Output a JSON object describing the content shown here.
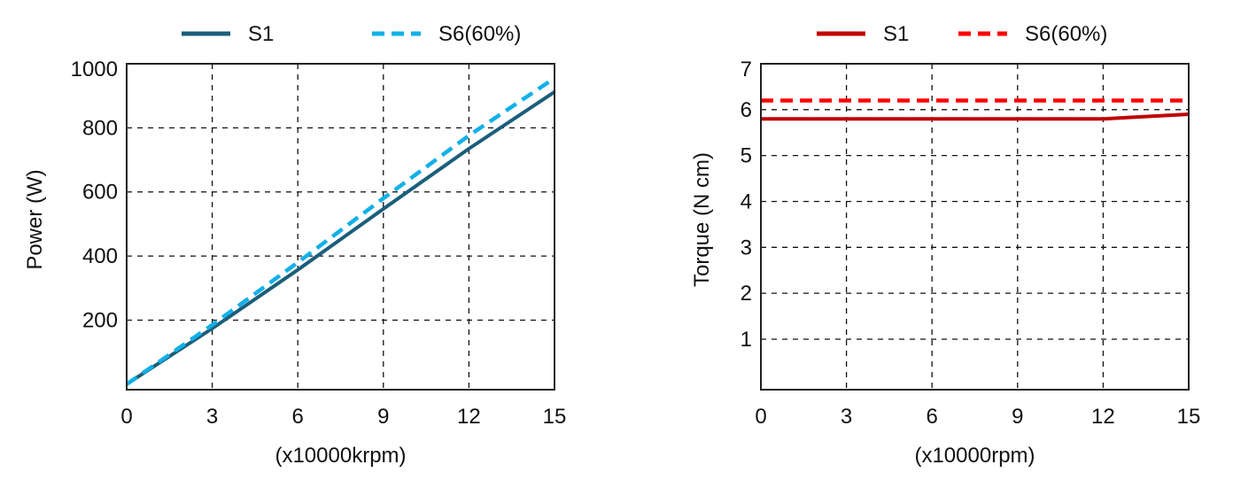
{
  "chart_data": [
    {
      "type": "line",
      "title": "",
      "xlabel": "(x10000krpm)",
      "ylabel": "Power (W)",
      "x": [
        0,
        3,
        6,
        9,
        12,
        15
      ],
      "xticks": [
        "0",
        "3",
        "6",
        "9",
        "12",
        "15"
      ],
      "yticks": [
        200,
        400,
        600,
        800,
        1000
      ],
      "ytick_labels": [
        "200",
        "400",
        "600",
        "800",
        "1000"
      ],
      "xlim": [
        0,
        15
      ],
      "ylim": [
        -17,
        1000
      ],
      "grid": true,
      "legend_position": "top-center",
      "series": [
        {
          "name": "S1",
          "values": [
            0,
            174,
            357,
            547,
            735,
            912
          ],
          "color": "#1b5e7b",
          "dash": false
        },
        {
          "name": "S6(60%)",
          "values": [
            0,
            185,
            380,
            580,
            776,
            955
          ],
          "color": "#12b0e8",
          "dash": true
        }
      ]
    },
    {
      "type": "line",
      "title": "",
      "xlabel": "(x10000rpm)",
      "ylabel": "Torque  (N cm)",
      "x": [
        0,
        3,
        6,
        9,
        12,
        15
      ],
      "xticks": [
        "0",
        "3",
        "6",
        "9",
        "12",
        "15"
      ],
      "yticks": [
        1,
        2,
        3,
        4,
        5,
        6,
        7
      ],
      "ytick_labels": [
        "1",
        "2",
        "3",
        "4",
        "5",
        "6",
        "7"
      ],
      "xlim": [
        0,
        15
      ],
      "ylim": [
        -0.1,
        7
      ],
      "grid": true,
      "legend_position": "top-center",
      "series": [
        {
          "name": "S1",
          "values": [
            5.8,
            5.8,
            5.8,
            5.8,
            5.8,
            5.9
          ],
          "color": "#c00000",
          "dash": false
        },
        {
          "name": "S6(60%)",
          "values": [
            6.2,
            6.2,
            6.2,
            6.2,
            6.2,
            6.2
          ],
          "color": "#ff0000",
          "dash": true
        }
      ]
    }
  ]
}
